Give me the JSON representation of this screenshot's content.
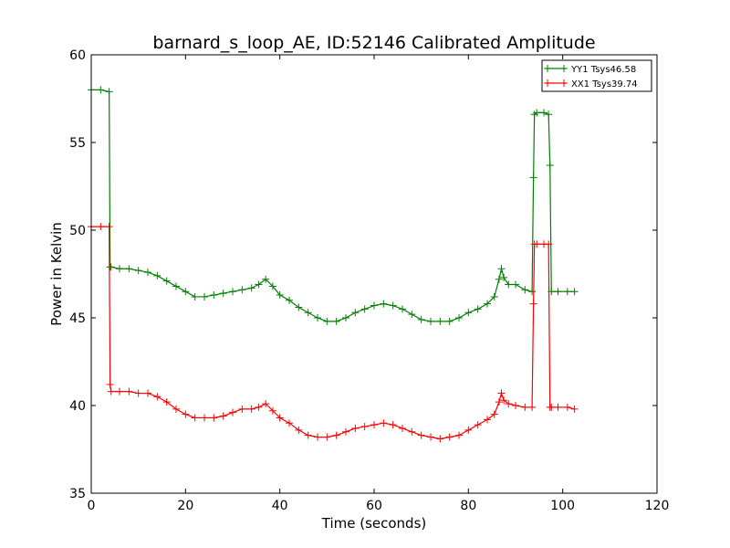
{
  "chart_data": {
    "type": "line",
    "title": "barnard_s_loop_AE, ID:52146 Calibrated Amplitude",
    "xlabel": "Time (seconds)",
    "ylabel": "Power in Kelvin",
    "xlim": [
      0,
      120
    ],
    "ylim": [
      35,
      60
    ],
    "xticks": [
      0,
      20,
      40,
      60,
      80,
      100,
      120
    ],
    "yticks": [
      35,
      40,
      45,
      50,
      55,
      60
    ],
    "grid": false,
    "legend_position": "top-right",
    "marker": "+",
    "series": [
      {
        "name": "YY1 Tsys46.58",
        "color": "#008000",
        "x": [
          0,
          2,
          3.8,
          4,
          4.2,
          6,
          8,
          10,
          12,
          14,
          16,
          18,
          20,
          22,
          24,
          26,
          28,
          30,
          32,
          34,
          35.5,
          37,
          38.5,
          40,
          42,
          44,
          46,
          48,
          50,
          52,
          54,
          56,
          58,
          60,
          62,
          64,
          66,
          68,
          70,
          72,
          74,
          76,
          78,
          80,
          82,
          84,
          85.5,
          86.5,
          87,
          87.5,
          88.5,
          90,
          92,
          93.5,
          93.8,
          94,
          94.5,
          96,
          97,
          97.3,
          97.6,
          99,
          101,
          102.5
        ],
        "y": [
          58.0,
          58.0,
          57.9,
          47.9,
          47.9,
          47.8,
          47.8,
          47.7,
          47.6,
          47.4,
          47.1,
          46.8,
          46.5,
          46.2,
          46.2,
          46.3,
          46.4,
          46.5,
          46.6,
          46.7,
          46.9,
          47.2,
          46.8,
          46.3,
          46.0,
          45.6,
          45.3,
          45.0,
          44.8,
          44.8,
          45.0,
          45.3,
          45.5,
          45.7,
          45.8,
          45.7,
          45.5,
          45.2,
          44.9,
          44.8,
          44.8,
          44.8,
          45.0,
          45.3,
          45.5,
          45.8,
          46.2,
          47.2,
          47.8,
          47.3,
          46.9,
          46.9,
          46.6,
          46.5,
          53.0,
          56.6,
          56.7,
          56.7,
          56.6,
          53.7,
          46.5,
          46.5,
          46.5,
          46.5
        ]
      },
      {
        "name": "XX1 Tsys39.74",
        "color": "#ff0000",
        "x": [
          0,
          2,
          3.8,
          4,
          4.2,
          6,
          8,
          10,
          12,
          14,
          16,
          18,
          20,
          22,
          24,
          26,
          28,
          30,
          32,
          34,
          35.5,
          37,
          38.5,
          40,
          42,
          44,
          46,
          48,
          50,
          52,
          54,
          56,
          58,
          60,
          62,
          64,
          66,
          68,
          70,
          72,
          74,
          76,
          78,
          80,
          82,
          84,
          85.5,
          86.5,
          87,
          87.5,
          88.5,
          90,
          92,
          93.5,
          93.8,
          94,
          94.5,
          96,
          97,
          97.3,
          97.6,
          99,
          101,
          102.5
        ],
        "y": [
          50.2,
          50.2,
          50.2,
          41.2,
          40.8,
          40.8,
          40.8,
          40.7,
          40.7,
          40.5,
          40.2,
          39.8,
          39.5,
          39.3,
          39.3,
          39.3,
          39.4,
          39.6,
          39.8,
          39.8,
          39.9,
          40.1,
          39.7,
          39.3,
          39.0,
          38.6,
          38.3,
          38.2,
          38.2,
          38.3,
          38.5,
          38.7,
          38.8,
          38.9,
          39.0,
          38.9,
          38.7,
          38.5,
          38.3,
          38.2,
          38.1,
          38.2,
          38.3,
          38.6,
          38.9,
          39.2,
          39.5,
          40.2,
          40.7,
          40.3,
          40.1,
          40.0,
          39.9,
          39.9,
          45.8,
          49.2,
          49.2,
          49.2,
          49.2,
          39.9,
          39.9,
          39.9,
          39.9,
          39.8
        ]
      }
    ]
  }
}
